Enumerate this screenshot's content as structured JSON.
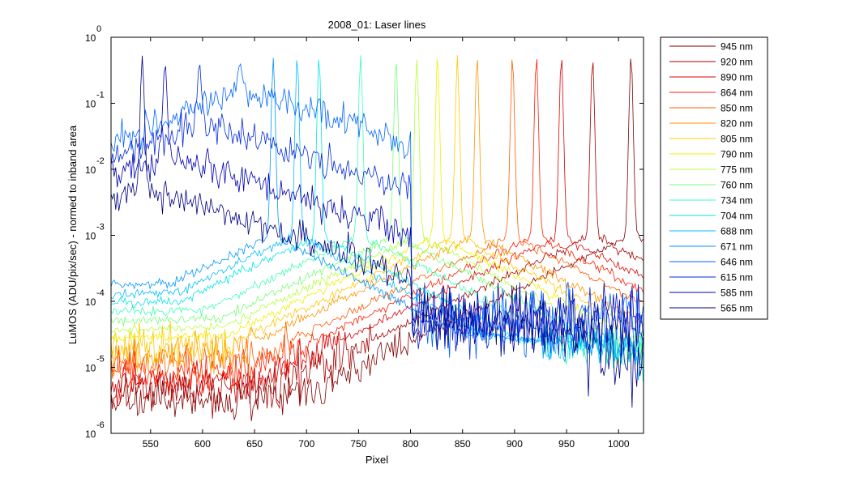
{
  "chart_data": {
    "type": "line",
    "title": "2008_01: Laser lines",
    "xlabel": "Pixel",
    "ylabel": "LuMOS (ADU/pix/sec) - normed to inband area",
    "xlim": [
      512,
      1024
    ],
    "ylim": [
      1e-06,
      1
    ],
    "yscale": "log",
    "grid": false,
    "legend_position": "outside-right",
    "x_ticks": [
      550,
      600,
      650,
      700,
      750,
      800,
      850,
      900,
      950,
      1000
    ],
    "x_tick_labels": [
      "550",
      "600",
      "650",
      "700",
      "750",
      "800",
      "850",
      "900",
      "950",
      "1000"
    ],
    "y_ticks": [
      {
        "base": "10",
        "exp": "0",
        "value": 1
      },
      {
        "base": "10",
        "exp": "-1",
        "value": 0.1
      },
      {
        "base": "10",
        "exp": "-2",
        "value": 0.01
      },
      {
        "base": "10",
        "exp": "-3",
        "value": 0.001
      },
      {
        "base": "10",
        "exp": "-4",
        "value": 0.0001
      },
      {
        "base": "10",
        "exp": "-5",
        "value": 1e-05
      },
      {
        "base": "10",
        "exp": "-6",
        "value": 1e-06
      }
    ],
    "series": [
      {
        "name": "945 nm",
        "color": "#800000",
        "peak_x": 1012
      },
      {
        "name": "920 nm",
        "color": "#a80000",
        "peak_x": 975
      },
      {
        "name": "890 nm",
        "color": "#dc0000",
        "peak_x": 945
      },
      {
        "name": "864 nm",
        "color": "#ff1e00",
        "peak_x": 921
      },
      {
        "name": "850 nm",
        "color": "#ff5a00",
        "peak_x": 898
      },
      {
        "name": "820 nm",
        "color": "#ff9600",
        "peak_x": 864
      },
      {
        "name": "805 nm",
        "color": "#ffc800",
        "peak_x": 845
      },
      {
        "name": "790 nm",
        "color": "#f0f000",
        "peak_x": 826
      },
      {
        "name": "775 nm",
        "color": "#b4ff3c",
        "peak_x": 806
      },
      {
        "name": "760 nm",
        "color": "#78ff78",
        "peak_x": 786
      },
      {
        "name": "734 nm",
        "color": "#3cffb4",
        "peak_x": 752
      },
      {
        "name": "704 nm",
        "color": "#00e6e6",
        "peak_x": 712
      },
      {
        "name": "688 nm",
        "color": "#00beff",
        "peak_x": 691
      },
      {
        "name": "671 nm",
        "color": "#0096ff",
        "peak_x": 668
      },
      {
        "name": "646 nm",
        "color": "#0064ff",
        "peak_x": 636
      },
      {
        "name": "615 nm",
        "color": "#0028dc",
        "peak_x": 597
      },
      {
        "name": "585 nm",
        "color": "#0000b4",
        "peak_x": 564
      },
      {
        "name": "565 nm",
        "color": "#000082",
        "peak_x": 542
      }
    ]
  }
}
